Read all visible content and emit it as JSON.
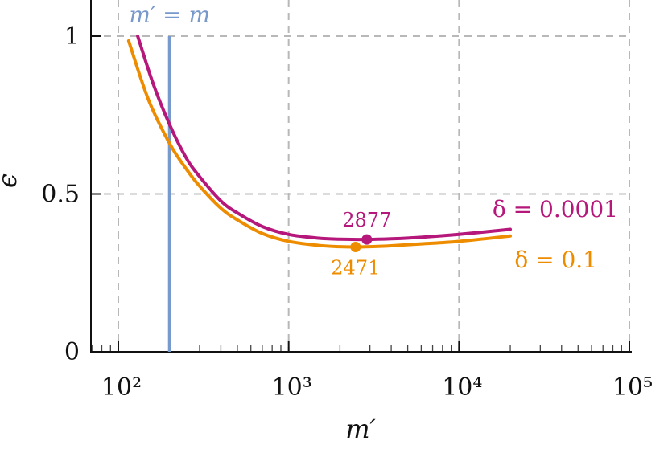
{
  "chart_data": {
    "type": "line",
    "x_scale": "log",
    "grid": true,
    "xlabel": "m′",
    "ylabel": "ϵ",
    "xlim": [
      70,
      100000
    ],
    "ylim": [
      0,
      1.1
    ],
    "x_ticks": [
      {
        "value": 100,
        "label": "10²"
      },
      {
        "value": 1000,
        "label": "10³"
      },
      {
        "value": 10000,
        "label": "10⁴"
      },
      {
        "value": 100000,
        "label": "10⁵"
      }
    ],
    "y_ticks": [
      {
        "value": 0,
        "label": "0"
      },
      {
        "value": 0.5,
        "label": "0.5"
      },
      {
        "value": 1,
        "label": "1"
      }
    ],
    "series": [
      {
        "name": "δ = 0.0001",
        "color": "#b5177a",
        "x": [
          130,
          160,
          200,
          250,
          300,
          400,
          500,
          700,
          1000,
          1500,
          2000,
          2877,
          4000,
          6000,
          10000,
          20000
        ],
        "y": [
          1.0,
          0.85,
          0.72,
          0.615,
          0.555,
          0.478,
          0.44,
          0.397,
          0.372,
          0.36,
          0.357,
          0.356,
          0.358,
          0.363,
          0.372,
          0.388
        ],
        "marker": {
          "x": 2877,
          "y": 0.356,
          "label": "2877"
        }
      },
      {
        "name": "δ = 0.1",
        "color": "#ee8c00",
        "x": [
          115,
          150,
          200,
          250,
          300,
          400,
          500,
          700,
          1000,
          1500,
          2000,
          2471,
          3000,
          4000,
          6000,
          10000,
          20000
        ],
        "y": [
          0.985,
          0.8,
          0.66,
          0.58,
          0.525,
          0.455,
          0.418,
          0.375,
          0.35,
          0.337,
          0.333,
          0.332,
          0.333,
          0.336,
          0.342,
          0.35,
          0.367
        ],
        "marker": {
          "x": 2471,
          "y": 0.332,
          "label": "2471"
        }
      }
    ],
    "vertical_line": {
      "x": 200,
      "label": "m′ = m",
      "color": "#7799cc"
    }
  }
}
